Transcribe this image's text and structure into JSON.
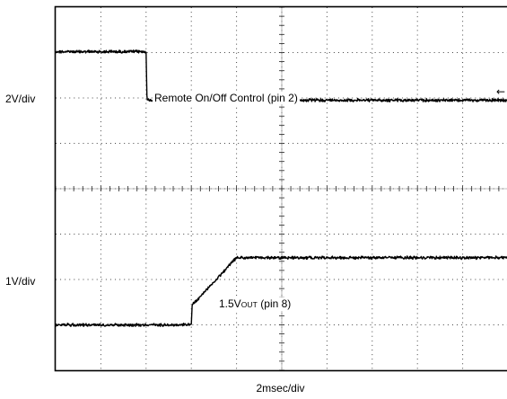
{
  "chart_data": {
    "type": "line",
    "instrument": "oscilloscope",
    "grid": true,
    "x_scale": "2msec/div",
    "channels": [
      {
        "scale": "2V/div",
        "label_prefix": "Remote On/Off Control (pin 2)",
        "label_sub": "",
        "label_suffix": "",
        "marker": "←",
        "x": [
          0,
          0.06,
          0.07,
          2.0,
          2.02,
          10.0
        ],
        "y_div": [
          1.02,
          1.02,
          1.02,
          1.02,
          -0.05,
          -0.05
        ]
      },
      {
        "scale": "1V/div",
        "label_prefix": "1.5V",
        "label_sub": "OUT",
        "label_suffix": " (pin 8)",
        "marker": "",
        "x": [
          0,
          3.0,
          3.02,
          3.1,
          4.0,
          10.0
        ],
        "y_div": [
          -1.0,
          -1.0,
          -0.55,
          -0.48,
          0.48,
          0.48
        ]
      }
    ]
  }
}
